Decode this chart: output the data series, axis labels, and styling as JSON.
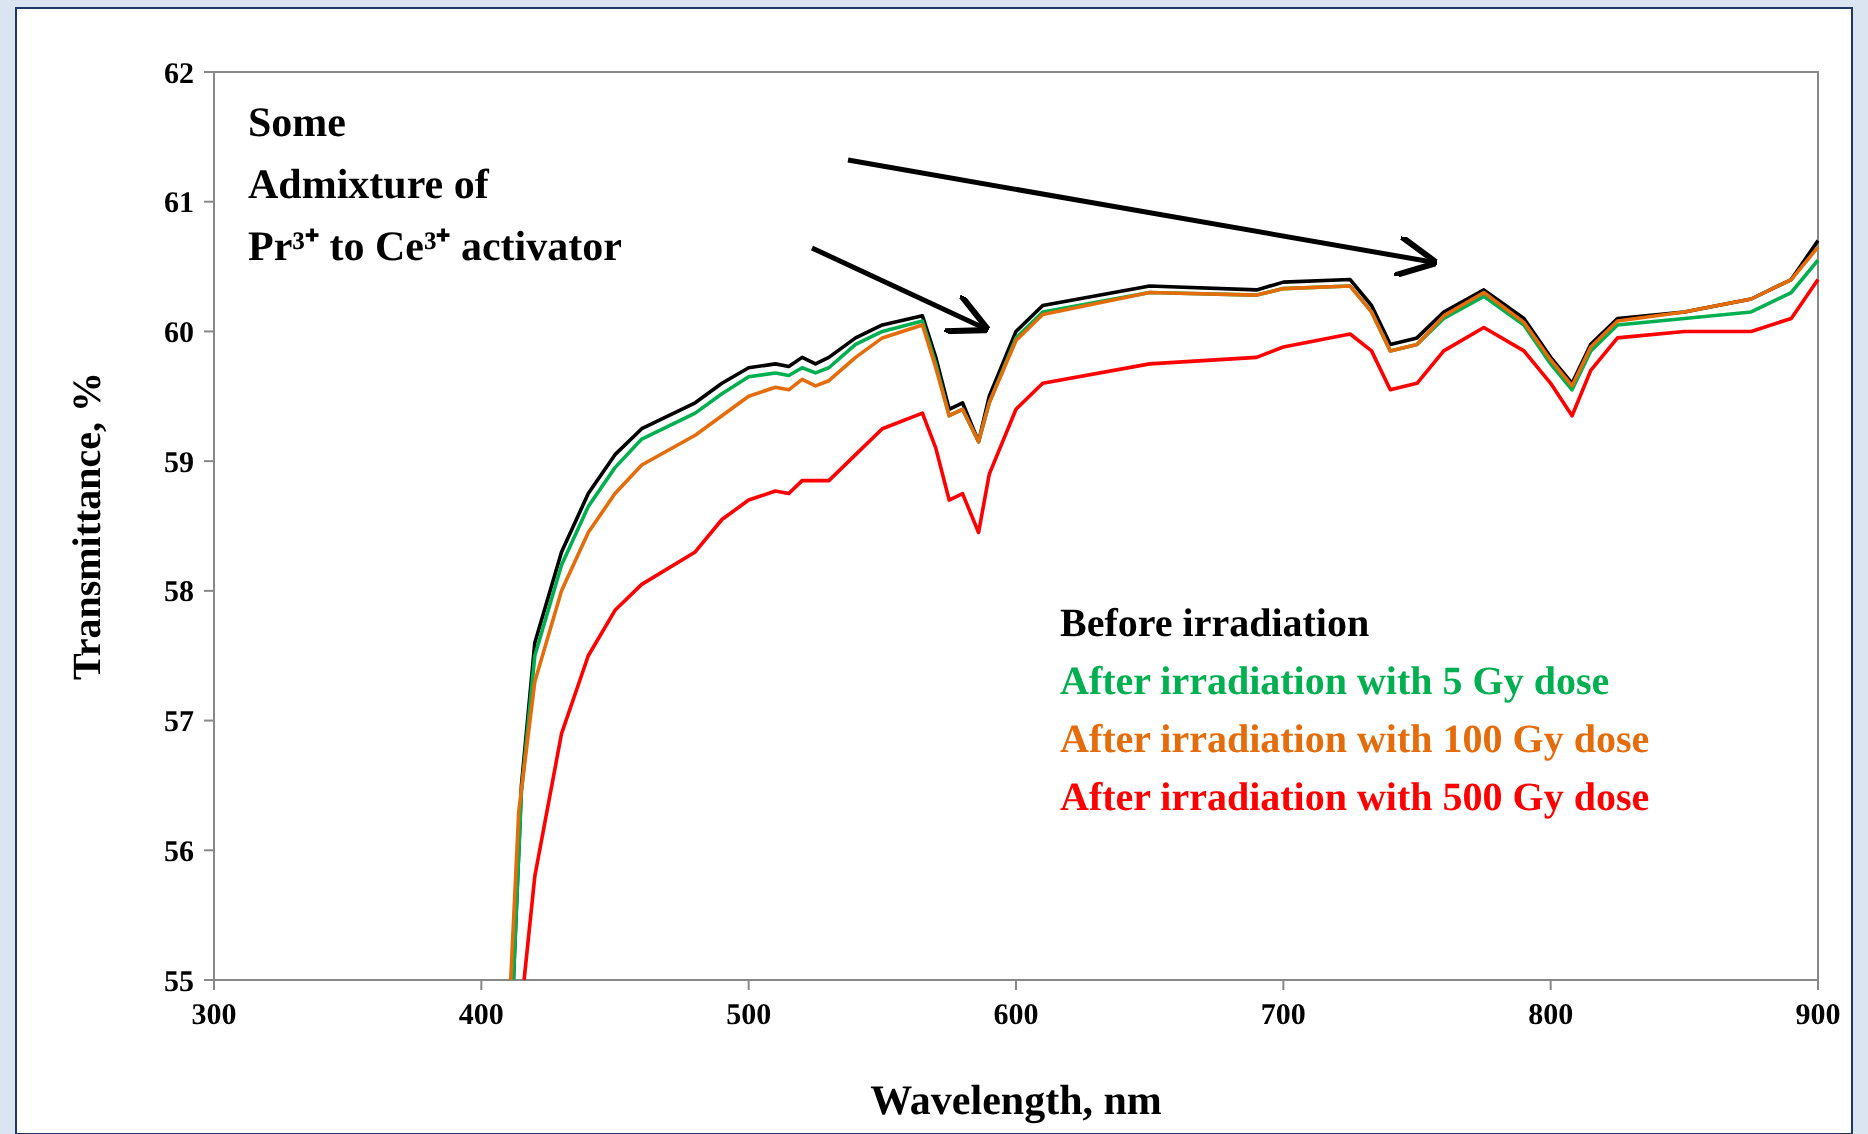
{
  "chart_data": {
    "type": "line",
    "xlabel": "Wavelength, nm",
    "ylabel": "Transmittance, %",
    "annotations": [
      "Some\nAdmixture of\nPr³⁺ to Ce³⁺ activator"
    ],
    "xlim": [
      300,
      900
    ],
    "xticks": [
      300,
      400,
      500,
      600,
      700,
      800,
      900
    ],
    "ylim": [
      55,
      62
    ],
    "yticks": [
      55,
      56,
      57,
      58,
      59,
      60,
      61,
      62
    ],
    "grid": false,
    "legend": "right",
    "line_style": "solid",
    "series": [
      {
        "name": "Before irradiation",
        "color": "#000000",
        "x": [
          412,
          415,
          420,
          430,
          440,
          450,
          460,
          480,
          490,
          500,
          510,
          515,
          520,
          525,
          530,
          540,
          550,
          565,
          570,
          575,
          580,
          586,
          590,
          600,
          610,
          650,
          690,
          700,
          725,
          733,
          740,
          750,
          760,
          775,
          790,
          800,
          808,
          815,
          825,
          850,
          875,
          890,
          900
        ],
        "values": [
          55,
          56.5,
          57.6,
          58.3,
          58.75,
          59.05,
          59.25,
          59.45,
          59.6,
          59.72,
          59.75,
          59.73,
          59.8,
          59.75,
          59.8,
          59.95,
          60.05,
          60.12,
          59.8,
          59.4,
          59.45,
          59.15,
          59.5,
          60.0,
          60.2,
          60.35,
          60.32,
          60.38,
          60.4,
          60.2,
          59.9,
          59.95,
          60.15,
          60.32,
          60.1,
          59.8,
          59.6,
          59.9,
          60.1,
          60.15,
          60.25,
          60.4,
          60.7
        ]
      },
      {
        "name": "After irradiation with 5 Gy dose",
        "color": "#00b050",
        "x": [
          412,
          415,
          420,
          430,
          440,
          450,
          460,
          480,
          490,
          500,
          510,
          515,
          520,
          525,
          530,
          540,
          550,
          565,
          570,
          575,
          580,
          586,
          590,
          600,
          610,
          650,
          690,
          700,
          725,
          733,
          740,
          750,
          760,
          775,
          790,
          800,
          808,
          815,
          825,
          850,
          875,
          890,
          900
        ],
        "values": [
          55,
          56.45,
          57.5,
          58.2,
          58.65,
          58.95,
          59.17,
          59.37,
          59.52,
          59.65,
          59.68,
          59.66,
          59.72,
          59.68,
          59.72,
          59.9,
          60.0,
          60.08,
          59.75,
          59.35,
          59.4,
          59.15,
          59.45,
          59.95,
          60.15,
          60.3,
          60.28,
          60.33,
          60.35,
          60.15,
          59.85,
          59.9,
          60.1,
          60.27,
          60.05,
          59.75,
          59.55,
          59.85,
          60.05,
          60.1,
          60.15,
          60.3,
          60.55
        ]
      },
      {
        "name": "After irradiation with 100 Gy dose",
        "color": "#e46c0a",
        "x": [
          411,
          414,
          420,
          430,
          440,
          450,
          460,
          480,
          490,
          500,
          510,
          515,
          520,
          525,
          530,
          540,
          550,
          565,
          570,
          575,
          580,
          586,
          590,
          600,
          610,
          650,
          690,
          700,
          725,
          733,
          740,
          750,
          760,
          775,
          790,
          800,
          808,
          815,
          825,
          850,
          875,
          890,
          900
        ],
        "values": [
          55,
          56.3,
          57.3,
          58.0,
          58.45,
          58.75,
          58.97,
          59.2,
          59.35,
          59.5,
          59.57,
          59.55,
          59.63,
          59.58,
          59.62,
          59.8,
          59.95,
          60.05,
          59.72,
          59.35,
          59.4,
          59.15,
          59.45,
          59.93,
          60.13,
          60.3,
          60.28,
          60.33,
          60.35,
          60.15,
          59.85,
          59.9,
          60.12,
          60.3,
          60.07,
          59.78,
          59.58,
          59.88,
          60.08,
          60.15,
          60.25,
          60.4,
          60.65
        ]
      },
      {
        "name": "After irradiation with 500 Gy dose",
        "color": "#ff0000",
        "x": [
          416,
          420,
          430,
          440,
          450,
          460,
          480,
          490,
          500,
          510,
          515,
          520,
          530,
          540,
          550,
          565,
          570,
          575,
          580,
          586,
          590,
          600,
          610,
          650,
          690,
          700,
          725,
          733,
          740,
          750,
          760,
          775,
          790,
          800,
          808,
          815,
          825,
          850,
          875,
          890,
          900
        ],
        "values": [
          55,
          55.8,
          56.9,
          57.5,
          57.85,
          58.05,
          58.3,
          58.55,
          58.7,
          58.77,
          58.75,
          58.85,
          58.85,
          59.05,
          59.25,
          59.37,
          59.1,
          58.7,
          58.75,
          58.45,
          58.9,
          59.4,
          59.6,
          59.75,
          59.8,
          59.88,
          59.98,
          59.85,
          59.55,
          59.6,
          59.85,
          60.03,
          59.85,
          59.6,
          59.35,
          59.7,
          59.95,
          60.0,
          60.0,
          60.1,
          60.4
        ]
      }
    ]
  }
}
